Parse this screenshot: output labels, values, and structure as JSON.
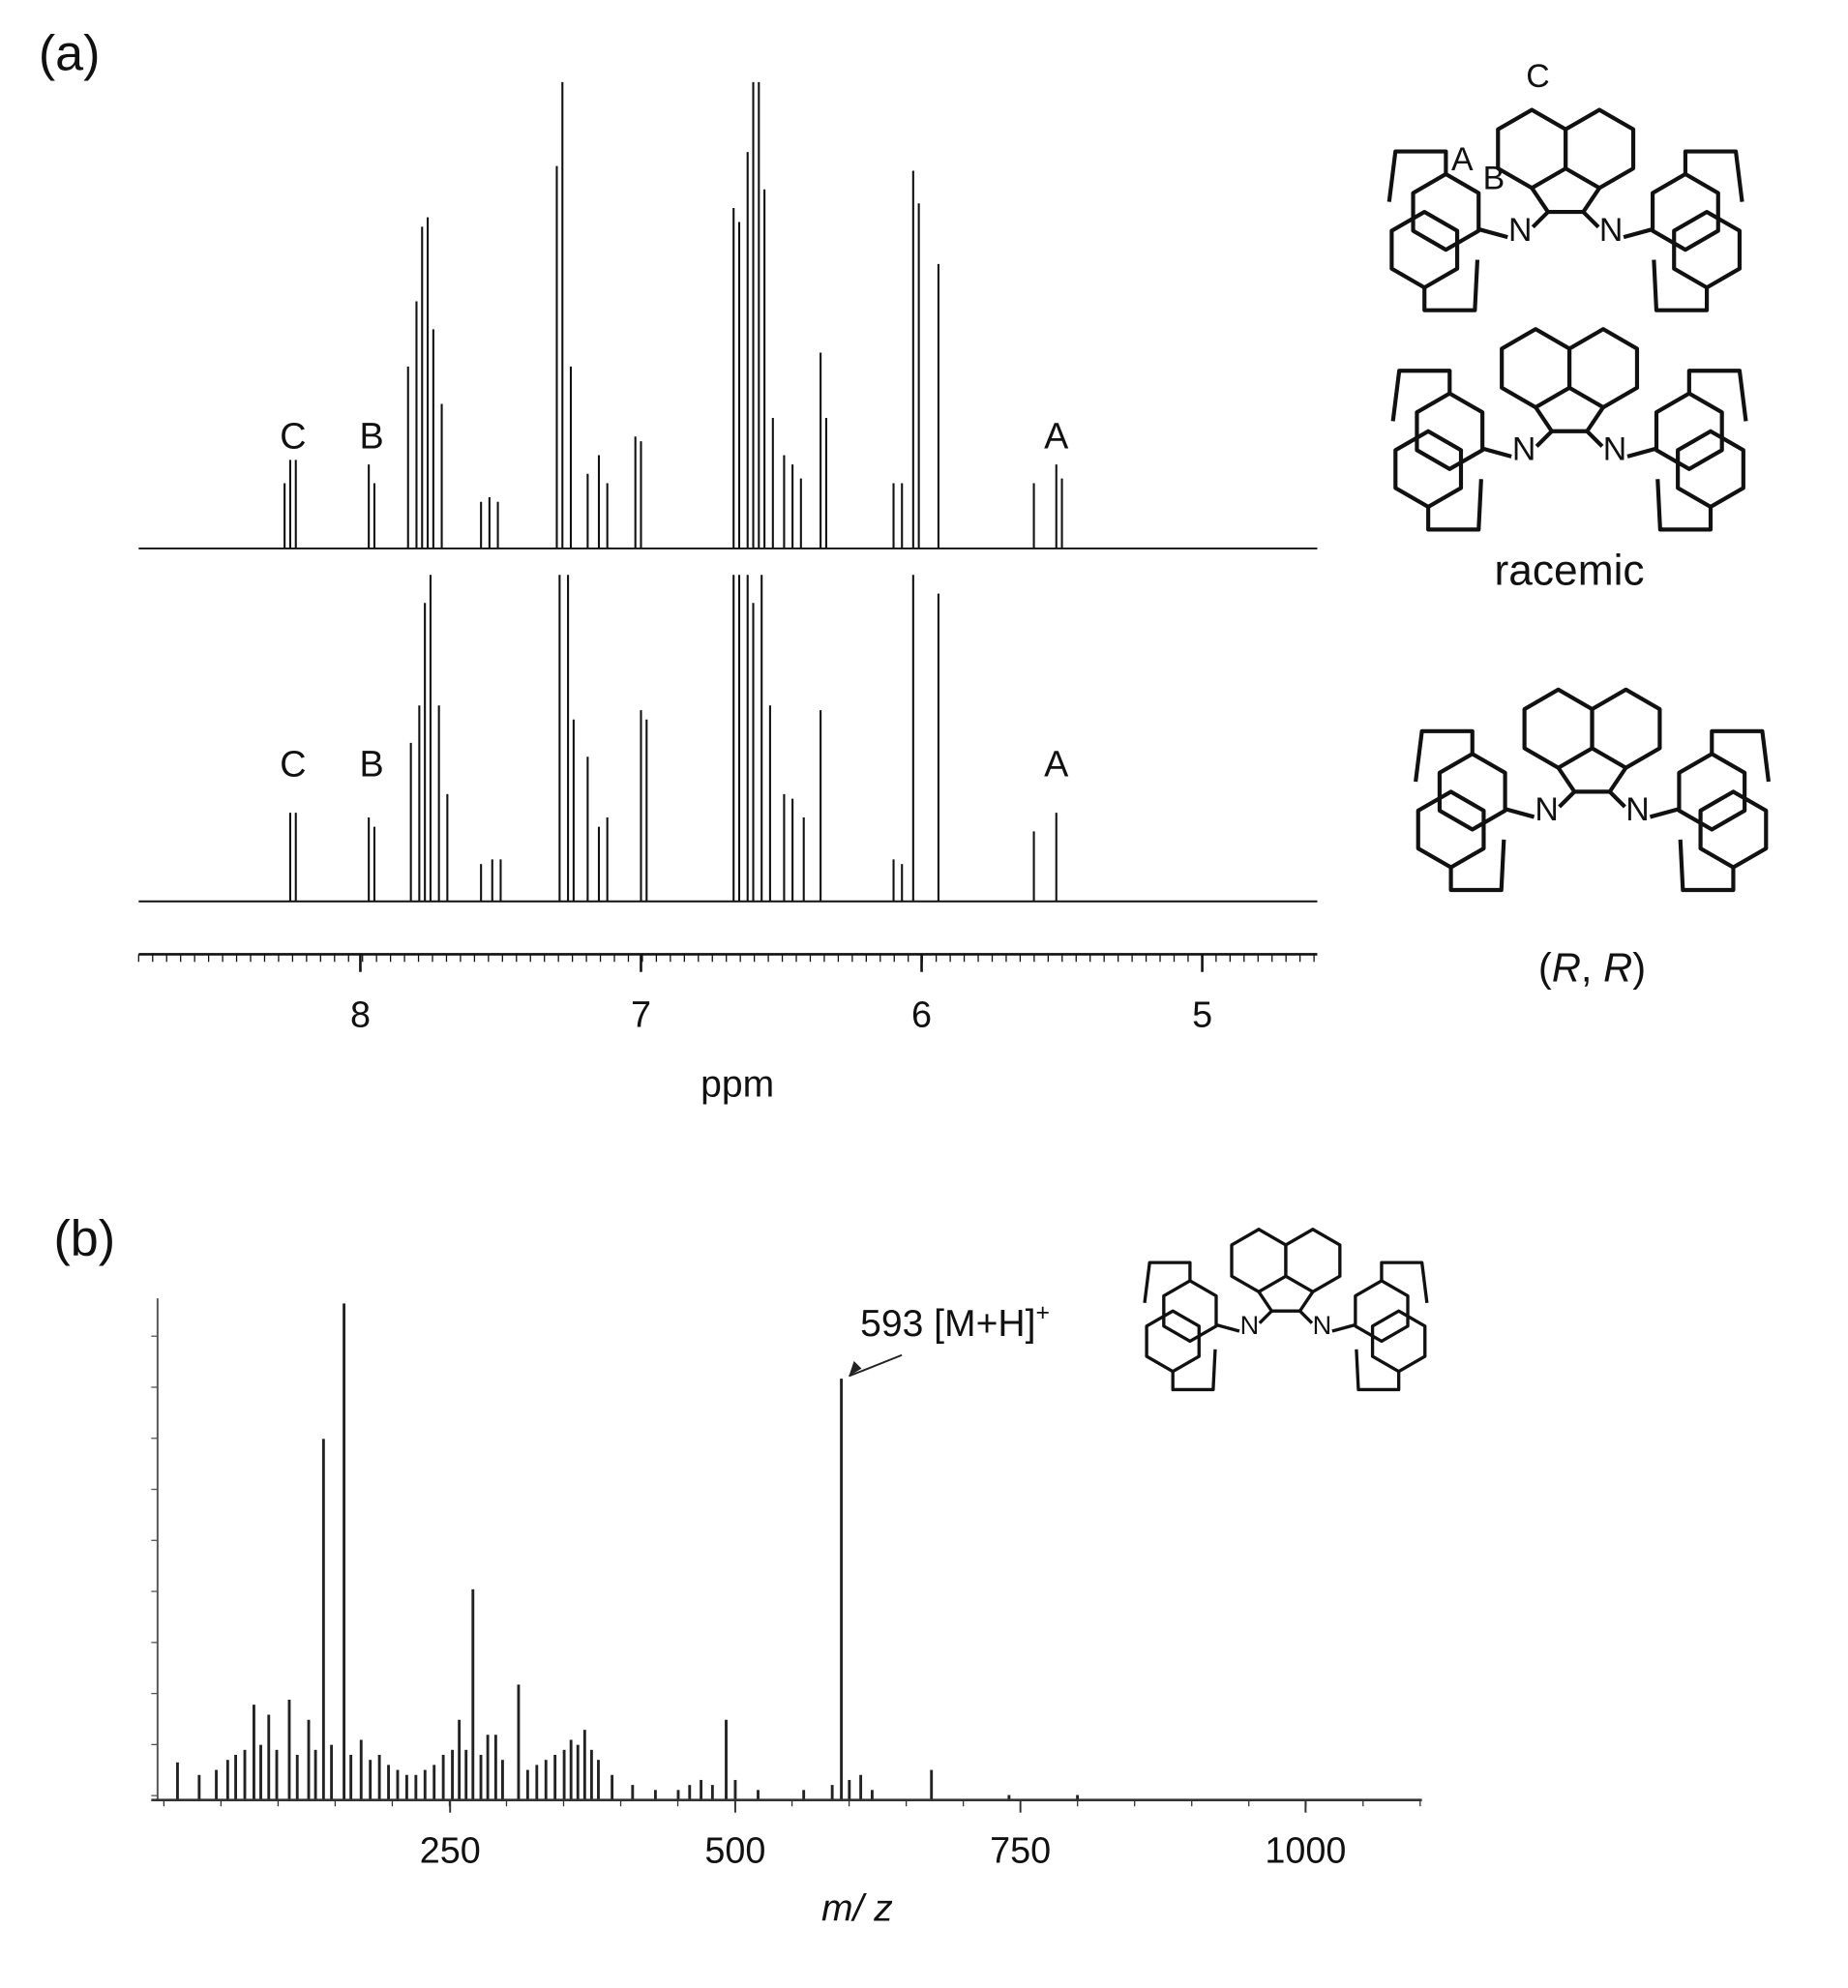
{
  "panel_labels": [
    "(a)",
    "(b)"
  ],
  "chart_data": [
    {
      "type": "spectrum",
      "xlim": [
        8.79,
        4.59
      ],
      "xticks": [
        8,
        7,
        6,
        5
      ],
      "xlabel": "ppm",
      "ylim": [
        0,
        100
      ],
      "series": [
        {
          "color": "#111111",
          "x": [
            8.27,
            8.25,
            8.23,
            7.97,
            7.95,
            7.83,
            7.8,
            7.78,
            7.76,
            7.74,
            7.71,
            7.57,
            7.54,
            7.51,
            7.3,
            7.28,
            7.25,
            7.19,
            7.15,
            7.12,
            7.02,
            7.0,
            6.67,
            6.65,
            6.62,
            6.6,
            6.58,
            6.56,
            6.53,
            6.49,
            6.46,
            6.43,
            6.36,
            6.34,
            6.1,
            6.07,
            6.03,
            6.01,
            5.94,
            5.6,
            5.52,
            5.5
          ],
          "values": [
            14,
            19,
            19,
            18,
            14,
            39,
            53,
            69,
            71,
            47,
            31,
            10,
            11,
            10,
            82,
            100,
            39,
            16,
            20,
            14,
            24,
            23,
            73,
            70,
            85,
            100,
            100,
            77,
            28,
            20,
            18,
            15,
            42,
            28,
            14,
            14,
            81,
            74,
            61,
            14,
            18,
            15
          ],
          "annotations": [
            {
              "text": "C",
              "x": 8.24
            },
            {
              "text": "B",
              "x": 7.96
            },
            {
              "text": "A",
              "x": 5.52
            }
          ]
        },
        {
          "color": "#111111",
          "x": [
            8.25,
            8.23,
            7.97,
            7.95,
            7.82,
            7.79,
            7.77,
            7.75,
            7.72,
            7.69,
            7.57,
            7.53,
            7.5,
            7.29,
            7.26,
            7.24,
            7.19,
            7.15,
            7.12,
            7.0,
            6.98,
            6.67,
            6.65,
            6.62,
            6.6,
            6.57,
            6.54,
            6.49,
            6.46,
            6.42,
            6.36,
            6.1,
            6.07,
            6.03,
            5.94,
            5.6,
            5.52
          ],
          "values": [
            19,
            19,
            18,
            16,
            34,
            42,
            64,
            70,
            42,
            23,
            8,
            9,
            9,
            70,
            70,
            39,
            31,
            16,
            18,
            41,
            39,
            70,
            70,
            70,
            64,
            70,
            42,
            23,
            22,
            18,
            41,
            9,
            8,
            70,
            66,
            15,
            19
          ],
          "annotations": [
            {
              "text": "C",
              "x": 8.24
            },
            {
              "text": "B",
              "x": 7.96
            },
            {
              "text": "A",
              "x": 5.52
            }
          ]
        }
      ]
    },
    {
      "type": "stick",
      "xlim": [
        -12,
        1102
      ],
      "xticks": [
        250,
        500,
        750,
        1000
      ],
      "xlabel": "m/ z",
      "ylim": [
        0,
        100
      ],
      "color": "#222222",
      "x": [
        11,
        30,
        45,
        55,
        62,
        70,
        78,
        84,
        91,
        98,
        109,
        116,
        126,
        132,
        139,
        146,
        157,
        163,
        172,
        180,
        188,
        196,
        204,
        212,
        220,
        228,
        236,
        244,
        252,
        258,
        264,
        270,
        277,
        283,
        290,
        296,
        310,
        318,
        326,
        334,
        342,
        350,
        356,
        362,
        368,
        374,
        380,
        392,
        410,
        430,
        450,
        460,
        470,
        480,
        492,
        500,
        520,
        560,
        585,
        593,
        600,
        610,
        620,
        672,
        740,
        800
      ],
      "values": [
        7.5,
        5,
        6,
        8,
        9,
        10,
        19,
        11,
        17,
        10,
        20,
        9,
        16,
        10,
        72,
        11,
        99,
        9,
        12,
        8,
        9,
        7,
        6,
        5,
        5,
        6,
        7,
        9,
        10,
        16,
        10,
        42,
        9,
        13,
        13,
        8,
        23,
        6,
        7,
        8,
        9,
        10,
        12,
        11,
        14,
        10,
        8,
        5,
        3,
        2,
        2,
        3,
        4,
        3,
        16,
        4,
        2,
        2,
        3,
        84,
        4,
        5,
        2,
        6,
        1,
        1
      ],
      "annotations": [
        {
          "text": "593 [M+H]",
          "superscript": "+",
          "x": 593
        }
      ]
    }
  ],
  "structures": [
    {
      "labels": [
        "C",
        "A",
        "B",
        "N",
        "N"
      ]
    },
    {
      "labels": [
        "N",
        "N"
      ],
      "caption": "racemic"
    },
    {
      "labels": [
        "N",
        "N"
      ],
      "caption_parts": [
        "(",
        "R",
        ", ",
        "R",
        ")"
      ]
    },
    {
      "labels": [
        "N",
        "N"
      ]
    }
  ]
}
